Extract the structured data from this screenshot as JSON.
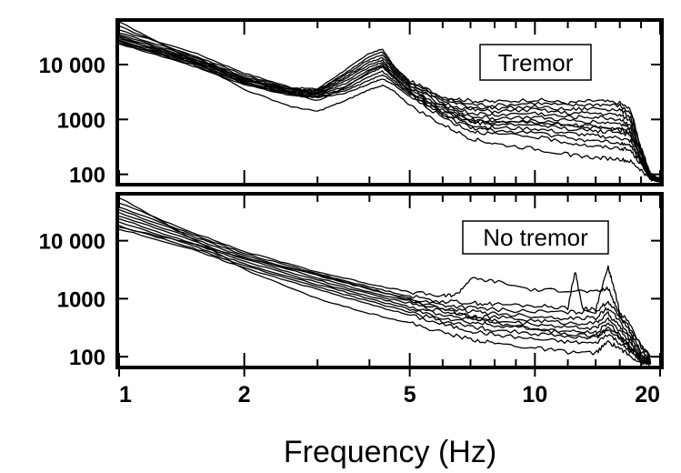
{
  "chart_data": [
    {
      "type": "line",
      "panel": "top",
      "label": "Tremor",
      "xscale": "log",
      "yscale": "log",
      "xlim": [
        1,
        20
      ],
      "ylim": [
        70,
        60000
      ],
      "yticks": [
        100,
        1000,
        10000
      ],
      "ytick_labels": [
        "100",
        "1000",
        "10 000"
      ],
      "series": [
        {
          "x": [
            1,
            1.5,
            2,
            2.6,
            3,
            3.5,
            4,
            4.3,
            4.6,
            5,
            6,
            7,
            8,
            10,
            12,
            14,
            16,
            17,
            18,
            19,
            20
          ],
          "y": [
            42000,
            17000,
            7000,
            3800,
            3600,
            8000,
            16000,
            19000,
            9000,
            5000,
            2600,
            2200,
            2100,
            2300,
            2000,
            2200,
            2000,
            1500,
            300,
            100,
            80
          ]
        },
        {
          "x": [
            1,
            1.5,
            2,
            2.6,
            3,
            3.5,
            4,
            4.3,
            4.6,
            5,
            6,
            7,
            8,
            10,
            12,
            14,
            16,
            17,
            18,
            19,
            20
          ],
          "y": [
            38000,
            15000,
            6500,
            3600,
            3400,
            7000,
            14000,
            17000,
            8500,
            4800,
            2400,
            1900,
            1800,
            2000,
            1800,
            1900,
            1800,
            1300,
            280,
            95,
            80
          ]
        },
        {
          "x": [
            1,
            1.5,
            2,
            2.6,
            3,
            3.5,
            4,
            4.3,
            4.6,
            5,
            6,
            7,
            8,
            10,
            12,
            14,
            16,
            17,
            18,
            19,
            20
          ],
          "y": [
            35000,
            14000,
            6000,
            3500,
            3300,
            6500,
            12500,
            15000,
            8000,
            4500,
            2200,
            1700,
            1600,
            1700,
            1500,
            1600,
            1500,
            1100,
            260,
            92,
            80
          ]
        },
        {
          "x": [
            1,
            1.5,
            2,
            2.6,
            3,
            3.5,
            4,
            4.3,
            4.6,
            5,
            6,
            7,
            8,
            10,
            12,
            14,
            16,
            17,
            18,
            19,
            20
          ],
          "y": [
            33000,
            13000,
            5700,
            3400,
            3200,
            6000,
            11000,
            13500,
            7500,
            4200,
            2000,
            1500,
            1400,
            1500,
            1300,
            1300,
            1200,
            950,
            240,
            90,
            80
          ]
        },
        {
          "x": [
            1,
            1.5,
            2,
            2.6,
            3,
            3.5,
            4,
            4.3,
            4.6,
            5,
            6,
            7,
            8,
            10,
            12,
            14,
            16,
            17,
            18,
            19,
            20
          ],
          "y": [
            31000,
            12500,
            5500,
            3300,
            3100,
            5500,
            10000,
            12000,
            7000,
            4000,
            1850,
            1300,
            1200,
            1300,
            1100,
            1100,
            1000,
            800,
            220,
            88,
            80
          ]
        },
        {
          "x": [
            1,
            1.5,
            2,
            2.6,
            3,
            3.5,
            4,
            4.3,
            4.6,
            5,
            6,
            7,
            8,
            10,
            12,
            14,
            16,
            17,
            18,
            19,
            20
          ],
          "y": [
            30000,
            12000,
            5300,
            3200,
            3000,
            5000,
            9000,
            11000,
            6500,
            3800,
            1700,
            1150,
            1050,
            1100,
            950,
            900,
            850,
            700,
            200,
            86,
            80
          ]
        },
        {
          "x": [
            1,
            1.5,
            2,
            2.6,
            3,
            3.5,
            4,
            4.3,
            4.6,
            5,
            6,
            7,
            8,
            10,
            12,
            14,
            16,
            17,
            18,
            19,
            20
          ],
          "y": [
            28000,
            11500,
            5100,
            3100,
            2900,
            4500,
            8000,
            10000,
            6000,
            3500,
            1550,
            1000,
            900,
            950,
            800,
            750,
            700,
            600,
            190,
            85,
            80
          ]
        },
        {
          "x": [
            1,
            1.5,
            2,
            2.6,
            3,
            3.5,
            4,
            4.3,
            4.6,
            5,
            6,
            7,
            8,
            10,
            12,
            14,
            16,
            17,
            18,
            19,
            20
          ],
          "y": [
            27000,
            11000,
            4900,
            3000,
            2800,
            4000,
            7000,
            9000,
            5500,
            3200,
            1400,
            900,
            800,
            800,
            680,
            620,
            580,
            500,
            180,
            84,
            80
          ]
        },
        {
          "x": [
            1,
            1.5,
            2,
            2.6,
            3,
            3.5,
            4,
            4.3,
            4.6,
            5,
            6,
            7,
            8,
            10,
            12,
            14,
            16,
            17,
            18,
            19,
            20
          ],
          "y": [
            26000,
            10500,
            4700,
            2900,
            2700,
            3600,
            6000,
            7500,
            5000,
            3000,
            1300,
            800,
            700,
            680,
            560,
            500,
            460,
            400,
            170,
            83,
            80
          ]
        },
        {
          "x": [
            1,
            1.5,
            2,
            2.6,
            3,
            3.5,
            4,
            4.3,
            4.6,
            5,
            6,
            7,
            8,
            10,
            12,
            14,
            16,
            17,
            18,
            19,
            20
          ],
          "y": [
            25000,
            10000,
            4500,
            2800,
            2600,
            3300,
            5200,
            6500,
            4600,
            2800,
            1200,
            700,
            620,
            580,
            460,
            400,
            370,
            330,
            160,
            82,
            80
          ]
        },
        {
          "x": [
            1,
            1.5,
            2,
            2.6,
            3,
            3.5,
            4,
            4.3,
            4.6,
            5,
            6,
            7,
            8,
            10,
            12,
            14,
            16,
            17,
            18,
            19,
            20
          ],
          "y": [
            24000,
            9500,
            4300,
            2700,
            2500,
            3000,
            4500,
            5500,
            4200,
            2600,
            1100,
            620,
            540,
            480,
            380,
            320,
            300,
            270,
            150,
            81,
            80
          ]
        },
        {
          "x": [
            1,
            1.5,
            2,
            2.6,
            3,
            3.5,
            4,
            4.3,
            4.6,
            5,
            6,
            7,
            8,
            10,
            12,
            14,
            16,
            17,
            18,
            19,
            20
          ],
          "y": [
            60000,
            12000,
            3500,
            1700,
            1400,
            2200,
            3500,
            4200,
            3200,
            1800,
            800,
            450,
            360,
            290,
            230,
            200,
            190,
            170,
            120,
            80,
            78
          ]
        },
        {
          "x": [
            1,
            1.5,
            2,
            2.6,
            3,
            3.5,
            4,
            4.3,
            4.6,
            5,
            6,
            7,
            8,
            10,
            12,
            14,
            16,
            17,
            18,
            19,
            20
          ],
          "y": [
            50000,
            14000,
            5500,
            3000,
            2200,
            3800,
            7500,
            9500,
            5800,
            3300,
            1500,
            950,
            880,
            900,
            780,
            700,
            650,
            560,
            180,
            85,
            80
          ]
        }
      ]
    },
    {
      "type": "line",
      "panel": "bottom",
      "label": "No tremor",
      "title": "",
      "xlabel": "Frequency (Hz)",
      "xscale": "log",
      "yscale": "log",
      "xlim": [
        1,
        20
      ],
      "ylim": [
        70,
        60000
      ],
      "xticks": [
        1,
        2,
        5,
        10,
        20
      ],
      "xtick_labels": [
        "1",
        "2",
        "5",
        "10",
        "20"
      ],
      "yticks": [
        100,
        1000,
        10000
      ],
      "ytick_labels": [
        "100",
        "1000",
        "10 000"
      ],
      "series": [
        {
          "x": [
            1,
            1.5,
            2,
            3,
            4,
            5,
            6,
            6.5,
            7,
            8,
            10,
            12,
            14,
            15,
            15.5,
            16,
            17,
            18,
            19
          ],
          "y": [
            45000,
            14000,
            6500,
            2900,
            1800,
            1300,
            1100,
            1200,
            2200,
            2000,
            1400,
            1400,
            1300,
            1500,
            900,
            500,
            300,
            150,
            100
          ]
        },
        {
          "x": [
            1,
            1.5,
            2,
            3,
            4,
            5,
            6,
            7,
            8,
            10,
            12,
            12.5,
            13,
            14,
            15,
            15.5,
            16,
            17,
            18,
            19
          ],
          "y": [
            38000,
            13000,
            6000,
            2700,
            1600,
            1100,
            900,
            850,
            800,
            750,
            700,
            3000,
            700,
            650,
            3500,
            1500,
            600,
            350,
            150,
            100
          ]
        },
        {
          "x": [
            1,
            1.5,
            2,
            3,
            4,
            5,
            6,
            7,
            8,
            10,
            12,
            14,
            15,
            16,
            17,
            18,
            19
          ],
          "y": [
            34000,
            12000,
            5600,
            2500,
            1450,
            1000,
            780,
            700,
            650,
            600,
            580,
            600,
            900,
            500,
            260,
            120,
            90
          ]
        },
        {
          "x": [
            1,
            1.5,
            2,
            3,
            4,
            5,
            6,
            7,
            8,
            10,
            12,
            14,
            15,
            16,
            17,
            18,
            19
          ],
          "y": [
            30000,
            11000,
            5200,
            2300,
            1300,
            900,
            680,
            600,
            560,
            500,
            460,
            470,
            700,
            400,
            220,
            110,
            85
          ]
        },
        {
          "x": [
            1,
            1.5,
            2,
            3,
            4,
            5,
            6,
            7,
            8,
            10,
            12,
            14,
            15,
            16,
            17,
            18,
            19
          ],
          "y": [
            27000,
            10000,
            4800,
            2100,
            1200,
            820,
            600,
            520,
            480,
            420,
            380,
            380,
            550,
            330,
            190,
            100,
            82
          ]
        },
        {
          "x": [
            1,
            1.5,
            2,
            3,
            4,
            5,
            6,
            7,
            8,
            10,
            12,
            14,
            15,
            16,
            17,
            18,
            19
          ],
          "y": [
            24000,
            9000,
            4400,
            1900,
            1100,
            740,
            530,
            450,
            410,
            360,
            320,
            310,
            450,
            280,
            170,
            95,
            80
          ]
        },
        {
          "x": [
            1,
            1.5,
            2,
            3,
            4,
            5,
            6,
            7,
            8,
            10,
            12,
            14,
            15,
            16,
            17,
            18,
            19
          ],
          "y": [
            21000,
            8200,
            4000,
            1750,
            1000,
            660,
            470,
            390,
            350,
            300,
            270,
            260,
            380,
            240,
            150,
            90,
            78
          ]
        },
        {
          "x": [
            1,
            1.5,
            2,
            3,
            4,
            5,
            6,
            7,
            8,
            10,
            12,
            14,
            15,
            16,
            17,
            18,
            19
          ],
          "y": [
            18000,
            7500,
            3700,
            1600,
            900,
            590,
            410,
            330,
            290,
            250,
            220,
            210,
            300,
            200,
            130,
            85,
            76
          ]
        },
        {
          "x": [
            1,
            1.5,
            2,
            3,
            4,
            5,
            6,
            7,
            8,
            10,
            12,
            14,
            15,
            16,
            17,
            18,
            19
          ],
          "y": [
            16000,
            7000,
            3400,
            1450,
            800,
            520,
            360,
            280,
            240,
            200,
            180,
            170,
            250,
            170,
            120,
            82,
            75
          ]
        },
        {
          "x": [
            1,
            1.5,
            2,
            3,
            4,
            5,
            6,
            7,
            8,
            10,
            12,
            14,
            15,
            16,
            17,
            18,
            19
          ],
          "y": [
            55000,
            11000,
            3200,
            1000,
            560,
            380,
            260,
            200,
            170,
            140,
            120,
            115,
            180,
            140,
            100,
            80,
            74
          ]
        },
        {
          "x": [
            1,
            1.5,
            2,
            3,
            4,
            5,
            6,
            7,
            8,
            10,
            12,
            14,
            15,
            16,
            17,
            18,
            19
          ],
          "y": [
            17000,
            9000,
            5000,
            2600,
            1500,
            950,
            650,
            480,
            380,
            300,
            250,
            230,
            320,
            220,
            140,
            88,
            76
          ]
        }
      ]
    }
  ]
}
